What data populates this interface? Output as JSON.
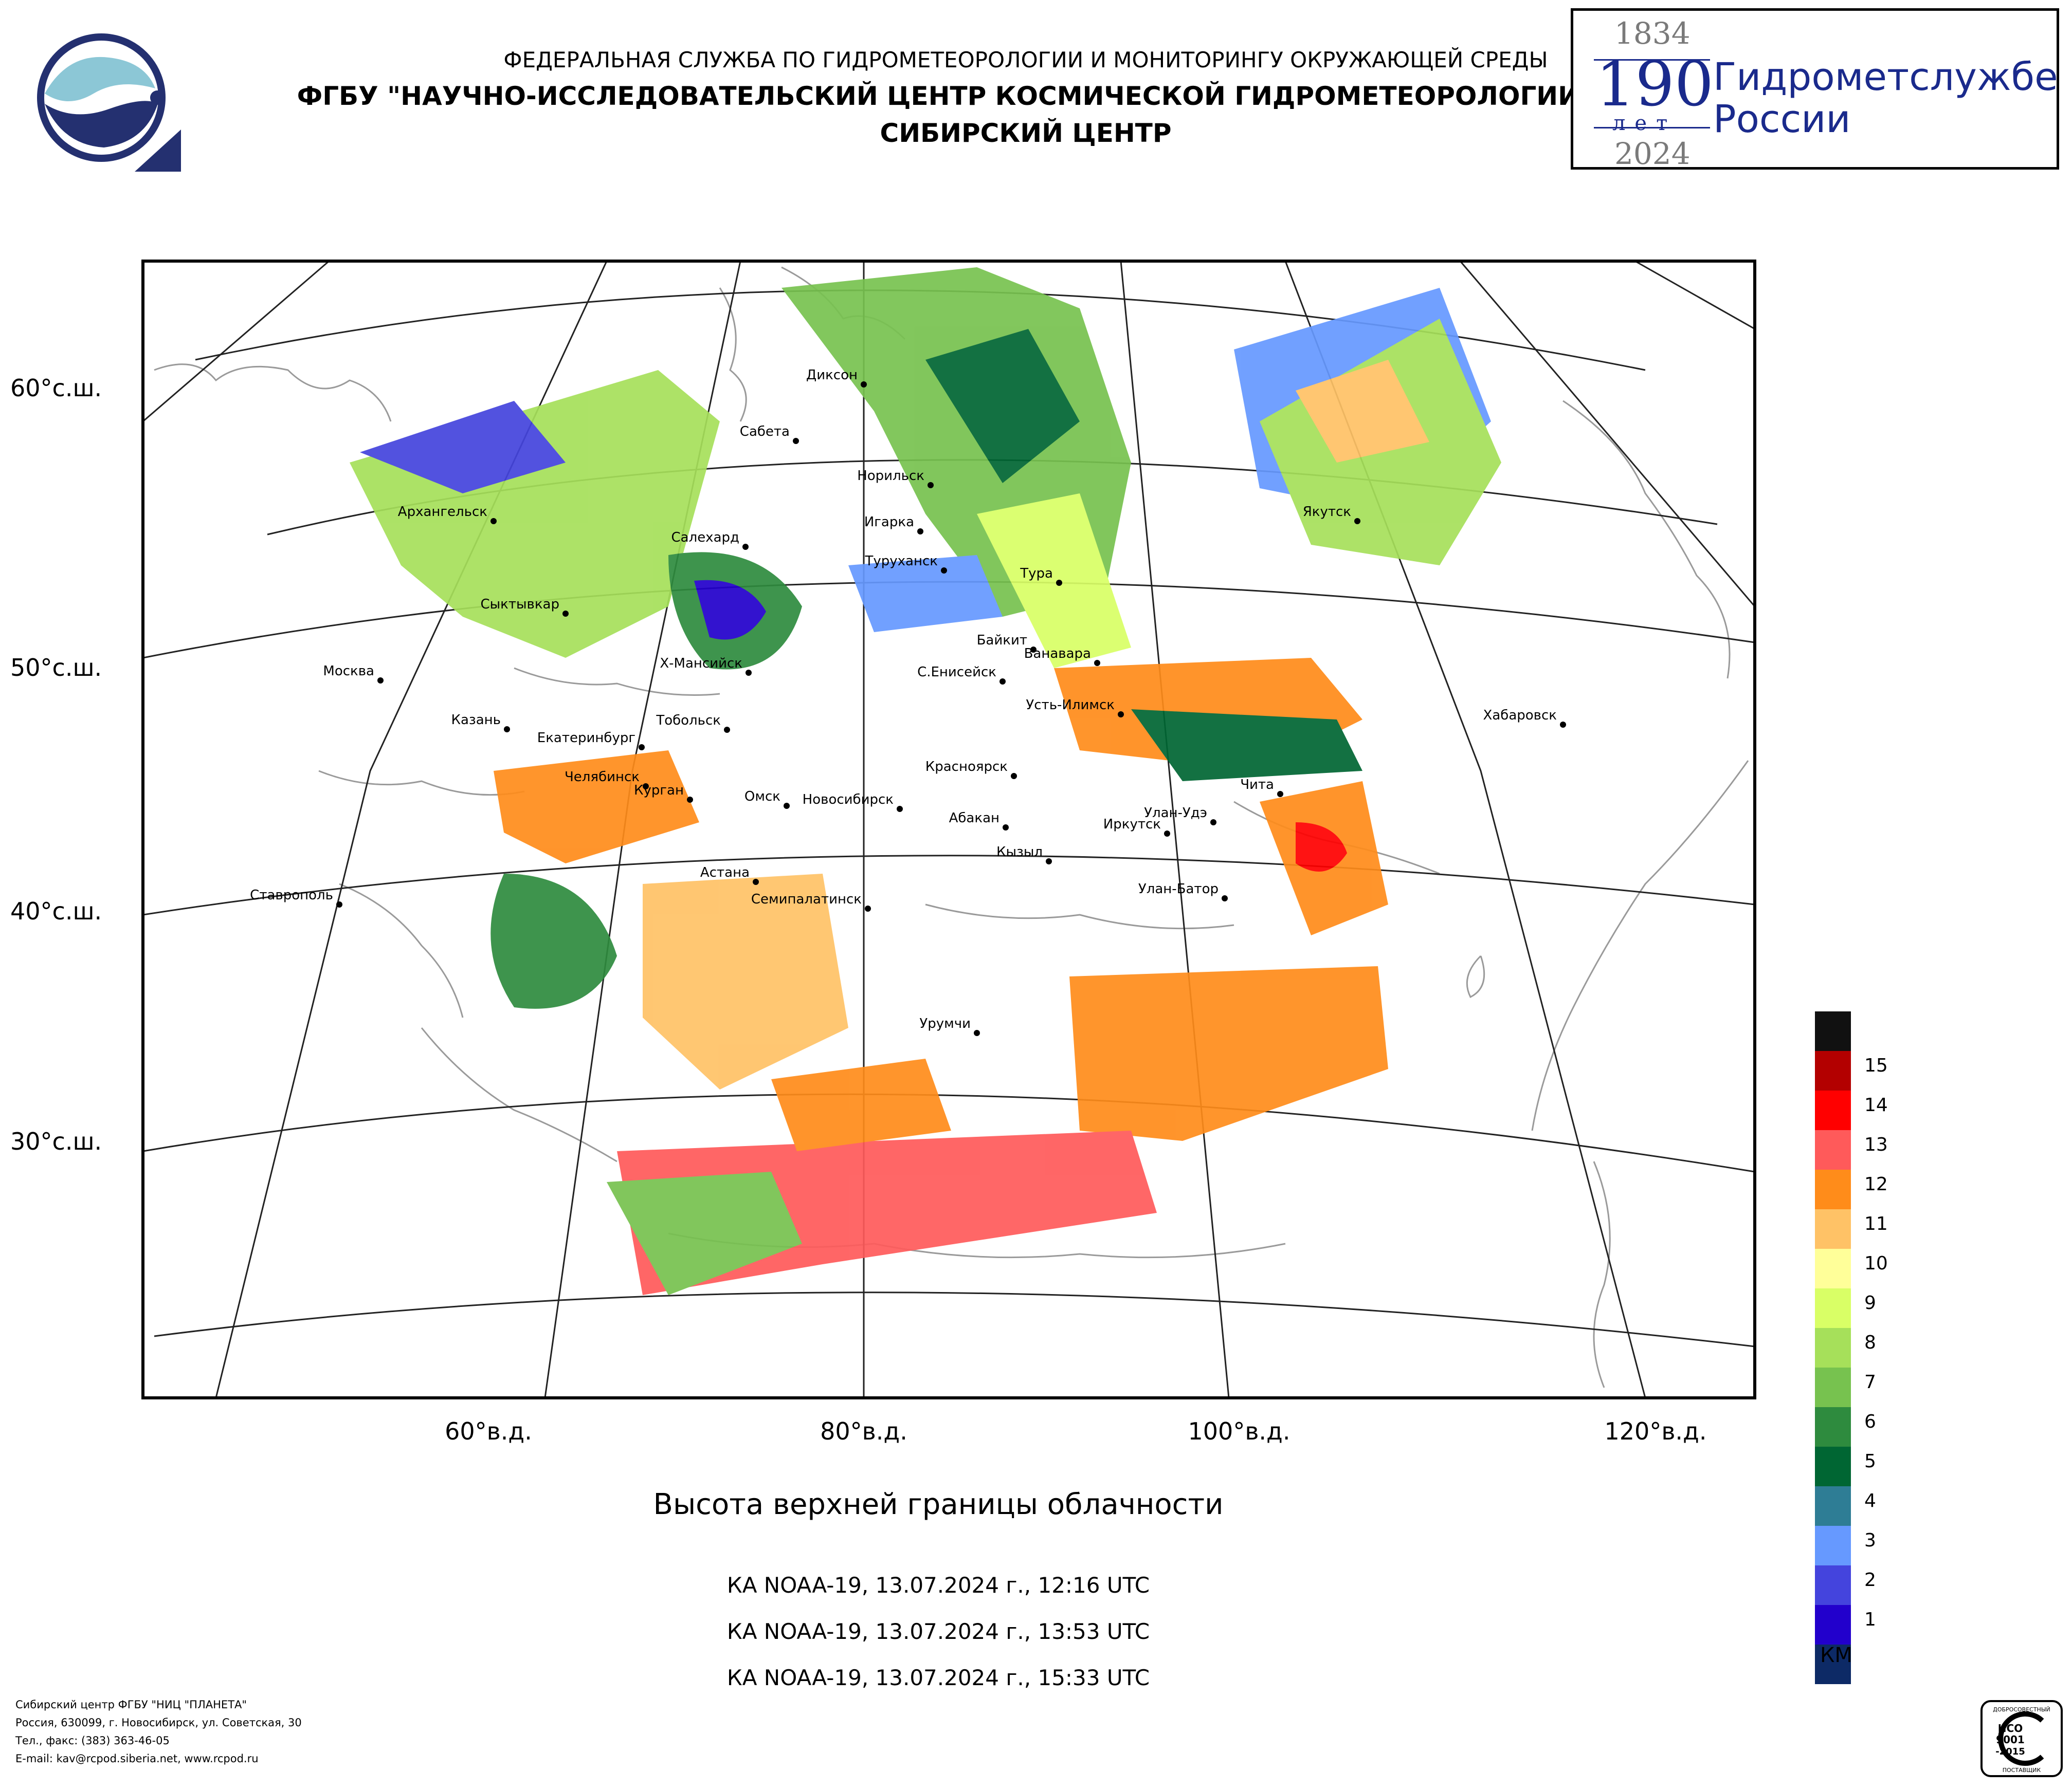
{
  "header": {
    "line1": "ФЕДЕРАЛЬНАЯ СЛУЖБА ПО ГИДРОМЕТЕОРОЛОГИИ И МОНИТОРИНГУ ОКРУЖАЮЩЕЙ СРЕДЫ",
    "line2": "ФГБУ \"НАУЧНО-ИССЛЕДОВАТЕЛЬСКИЙ ЦЕНТР КОСМИЧЕСКОЙ ГИДРОМЕТЕОРОЛОГИИ \"ПЛАНЕТА\"",
    "line3": "СИБИРСКИЙ ЦЕНТР"
  },
  "jubilee": {
    "year_start": "1834",
    "number": "190",
    "years_word": "лет",
    "year_end": "2024",
    "text_line1": "Гидрометслужбе",
    "text_line2": "России",
    "color": "#1a2a8c"
  },
  "map": {
    "title": "Высота верхней границы облачности",
    "passes": [
      "КА NOAA-19, 13.07.2024 г., 12:16 UTC",
      "КА NOAA-19, 13.07.2024 г., 13:53 UTC",
      "КА NOAA-19, 13.07.2024 г., 15:33 UTC"
    ],
    "lat_labels": [
      "60°с.ш.",
      "50°с.ш.",
      "40°с.ш.",
      "30°с.ш."
    ],
    "lon_labels": [
      "60°в.д.",
      "80°в.д.",
      "100°в.д.",
      "120°в.д."
    ],
    "cities": [
      "Диксон",
      "Сабета",
      "Норильск",
      "Игарка",
      "Архангельск",
      "Салехард",
      "Туруханск",
      "Тура",
      "Якутск",
      "Сыктывкар",
      "Байкит",
      "Ванавара",
      "Москва",
      "Х-Мансийск",
      "С.Енисейск",
      "Усть-Илимск",
      "Хабаровск",
      "Казань",
      "Тобольск",
      "Екатеринбург",
      "Красноярск",
      "Челябинск",
      "Курган",
      "Омск",
      "Новосибирск",
      "Абакан",
      "Улан-Удэ",
      "Иркутск",
      "Чита",
      "Кызыл",
      "Ставрополь",
      "Астана",
      "Семипалатинск",
      "Улан-Батор",
      "Урумчи"
    ]
  },
  "legend": {
    "unit": "КМ",
    "items": [
      {
        "label": "",
        "color": "#111111"
      },
      {
        "label": "15",
        "color": "#b30000"
      },
      {
        "label": "14",
        "color": "#ff0000"
      },
      {
        "label": "13",
        "color": "#ff5a5a"
      },
      {
        "label": "12",
        "color": "#ff8c1a"
      },
      {
        "label": "11",
        "color": "#ffc266"
      },
      {
        "label": "10",
        "color": "#ffff99"
      },
      {
        "label": "9",
        "color": "#d9ff66"
      },
      {
        "label": "8",
        "color": "#a6e05a"
      },
      {
        "label": "7",
        "color": "#77c24f"
      },
      {
        "label": "6",
        "color": "#2e8b3e"
      },
      {
        "label": "5",
        "color": "#006633"
      },
      {
        "label": "4",
        "color": "#2e7d95"
      },
      {
        "label": "3",
        "color": "#6699ff"
      },
      {
        "label": "2",
        "color": "#4444dd"
      },
      {
        "label": "1",
        "color": "#2200cc"
      },
      {
        "label": "",
        "color": "#0d2a66"
      }
    ]
  },
  "footer": {
    "line1": "Сибирский центр ФГБУ \"НИЦ \"ПЛАНЕТА\"",
    "line2": "Россия, 630099, г. Новосибирск, ул. Советская, 30",
    "line3": "Тел., факс: (383) 363-46-05",
    "line4": "E-mail: kav@rcpod.siberia.net, www.rcpod.ru"
  },
  "iso_badge": {
    "top": "ДОБРОСОВЕСТНЫЙ",
    "l1": "ИСО",
    "l2": "9001",
    "l3": "-2015",
    "bottom": "ПОСТАВЩИК"
  }
}
